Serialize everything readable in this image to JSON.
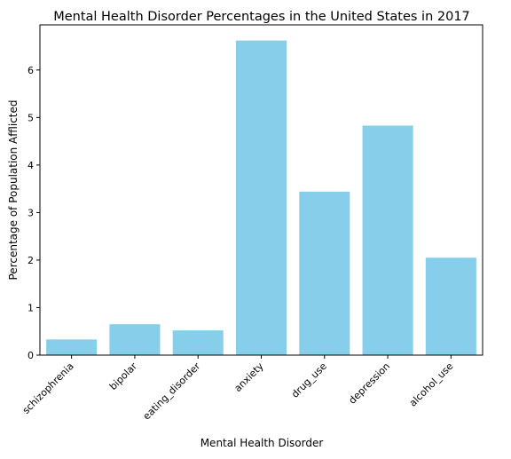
{
  "chart_data": {
    "type": "bar",
    "title": "Mental Health Disorder Percentages in the United States in 2017",
    "xlabel": "Mental Health Disorder",
    "ylabel": "Percentage of Population Afflicted",
    "categories": [
      "schizophrenia",
      "bipolar",
      "eating_disorder",
      "anxiety",
      "drug_use",
      "depression",
      "alcohol_use"
    ],
    "values": [
      0.33,
      0.65,
      0.52,
      6.62,
      3.44,
      4.83,
      2.05
    ],
    "ylim": [
      0,
      6.95
    ],
    "yticks": [
      0,
      1,
      2,
      3,
      4,
      5,
      6
    ],
    "bar_color": "#87ceeb",
    "grid": false,
    "legend": "none"
  }
}
